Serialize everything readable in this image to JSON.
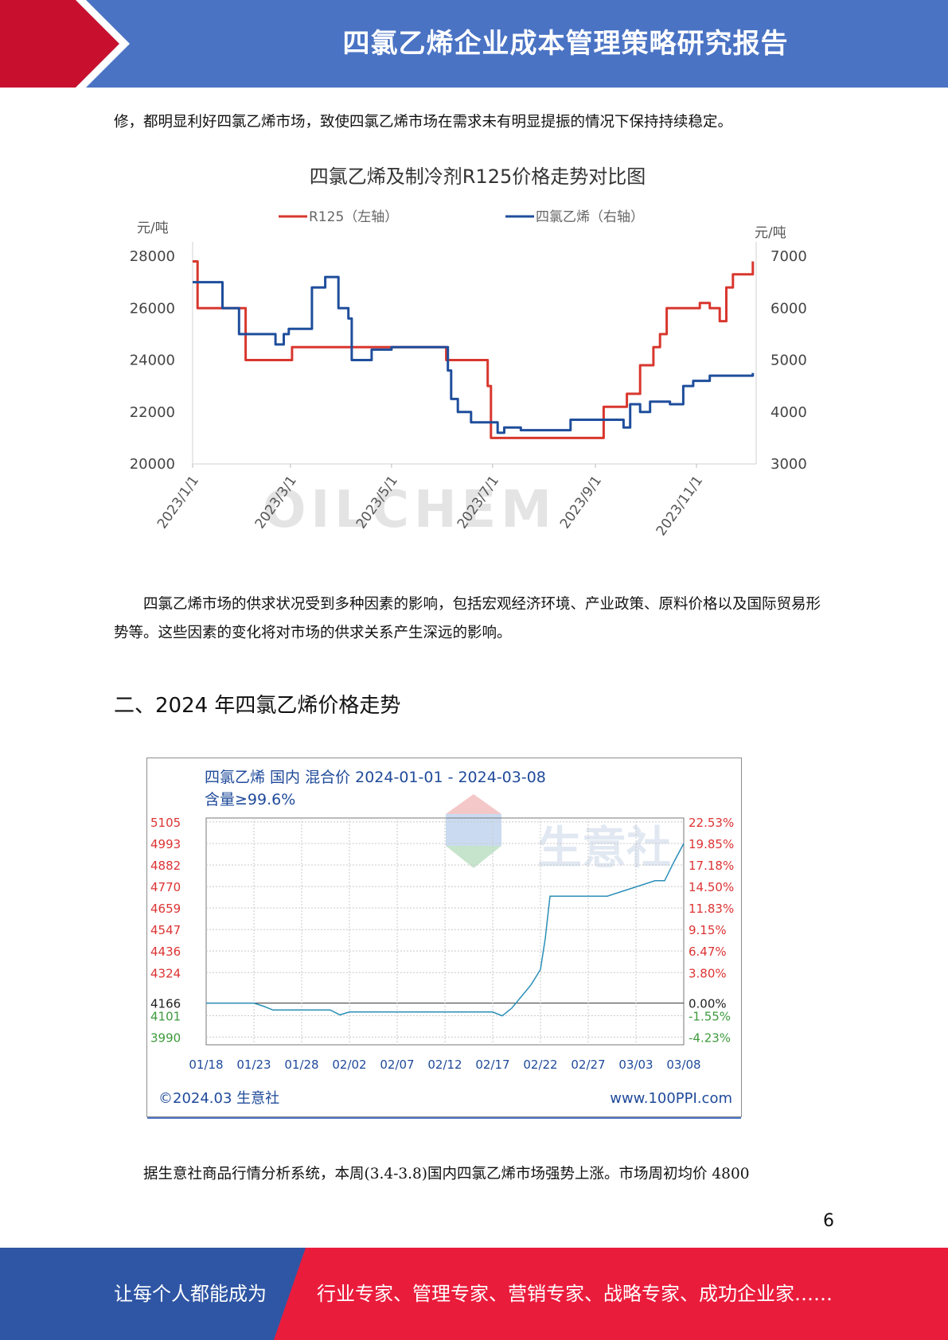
{
  "header": {
    "title": "四氯乙烯企业成本管理策略研究报告"
  },
  "paragraphs": {
    "p1": "修，都明显利好四氯乙烯市场，致使四氯乙烯市场在需求未有明显提振的情况下保持持续稳定。",
    "p2": "四氯乙烯市场的供求状况受到多种因素的影响，包括宏观经济环境、产业政策、原料价格以及国际贸易形势等。这些因素的变化将对市场的供求关系产生深远的影响。",
    "p3": "据生意社商品行情分析系统，本周(3.4-3.8)国内四氯乙烯市场强势上涨。市场周初均价 4800"
  },
  "section_heading": "二、2024 年四氯乙烯价格走势",
  "page_number": "6",
  "footer": {
    "left": "让每个人都能成为",
    "right": "行业专家、管理专家、营销专家、战略专家、成功企业家……"
  },
  "colors": {
    "header_blue": "#4a73c4",
    "accent_red": "#c8102e",
    "footer_blue": "#2f56a5",
    "footer_red": "#ea1c3c"
  },
  "chart_data": [
    {
      "type": "line",
      "title": "四氯乙烯及制冷剂R125价格走势对比图",
      "ylabel_left": "元/吨",
      "ylabel_right": "元/吨",
      "ylim_left": [
        20000,
        28000
      ],
      "ylim_right": [
        3000,
        7000
      ],
      "left_ticks": [
        "28000",
        "26000",
        "24000",
        "22000",
        "20000"
      ],
      "right_ticks": [
        "7000",
        "6000",
        "5000",
        "4000",
        "3000"
      ],
      "x_ticks": [
        "2023/1/1",
        "2023/3/1",
        "2023/5/1",
        "2023/7/1",
        "2023/9/1",
        "2023/11/1"
      ],
      "x_tick_days": [
        0,
        59,
        120,
        181,
        243,
        304
      ],
      "x_range_days": [
        0,
        340
      ],
      "watermark": "OILCHEM",
      "legend_position": "top",
      "series": [
        {
          "name": "R125（左轴）",
          "axis": "left",
          "color": "#d8372e",
          "x": [
            0,
            3,
            5,
            30,
            32,
            38,
            40,
            58,
            60,
            150,
            153,
            178,
            180,
            246,
            248,
            260,
            262,
            268,
            270,
            278,
            282,
            286,
            292,
            302,
            306,
            312,
            316,
            318,
            322,
            326,
            330,
            336,
            338
          ],
          "y": [
            27800,
            26000,
            26000,
            26000,
            24000,
            24000,
            24000,
            24000,
            24500,
            24500,
            24000,
            23000,
            21000,
            21000,
            22200,
            22200,
            22700,
            22700,
            23800,
            24500,
            25000,
            26000,
            26000,
            26000,
            26200,
            26000,
            26000,
            25500,
            26800,
            27300,
            27300,
            27300,
            27800
          ]
        },
        {
          "name": "四氯乙烯（右轴）",
          "axis": "left",
          "color": "#1f4e9c",
          "x": [
            0,
            12,
            18,
            22,
            28,
            48,
            50,
            55,
            58,
            70,
            72,
            80,
            82,
            88,
            91,
            94,
            96,
            108,
            110,
            120,
            126,
            132,
            140,
            144,
            148,
            152,
            154,
            156,
            160,
            168,
            176,
            178,
            180,
            184,
            188,
            198,
            202,
            208,
            220,
            224,
            228,
            232,
            238,
            242,
            244,
            250,
            256,
            260,
            264,
            270,
            276,
            288,
            290,
            296,
            302,
            312,
            316,
            318,
            320,
            330,
            336,
            338
          ],
          "y": [
            27000,
            27000,
            26000,
            26000,
            25000,
            25000,
            24600,
            25000,
            25200,
            25200,
            26800,
            27200,
            27200,
            26000,
            26000,
            25600,
            24000,
            24400,
            24400,
            24500,
            24500,
            24500,
            24500,
            24500,
            24500,
            24500,
            23600,
            22500,
            22000,
            21600,
            21600,
            21600,
            21600,
            21200,
            21400,
            21300,
            21300,
            21300,
            21300,
            21300,
            21700,
            21700,
            21700,
            21700,
            21700,
            21700,
            21700,
            21400,
            22300,
            22000,
            22400,
            22300,
            22300,
            23000,
            23200,
            23400,
            23400,
            23400,
            23400,
            23400,
            23400,
            23500
          ]
        }
      ]
    },
    {
      "type": "line",
      "title": "四氯乙烯 国内 混合价 2024-01-01 - 2024-03-08",
      "subtitle": "含量≥99.6%",
      "left_ticks": [
        "5105",
        "4993",
        "4882",
        "4770",
        "4659",
        "4547",
        "4436",
        "4324",
        "4166",
        "4101",
        "3990"
      ],
      "left_tick_values": [
        5105,
        4993,
        4882,
        4770,
        4659,
        4547,
        4436,
        4324,
        4166,
        4101,
        3990
      ],
      "right_ticks": [
        "22.53%",
        "19.85%",
        "17.18%",
        "14.50%",
        "11.83%",
        "9.15%",
        "6.47%",
        "3.80%",
        "0.00%",
        "-1.55%",
        "-4.23%"
      ],
      "x_ticks": [
        "01/18",
        "01/23",
        "01/28",
        "02/02",
        "02/07",
        "02/12",
        "02/17",
        "02/22",
        "02/27",
        "03/03",
        "03/08"
      ],
      "x_range_days": [
        0,
        50
      ],
      "ylim": [
        3950,
        5125
      ],
      "baseline": 4166,
      "watermark": "生意社",
      "footer_left": "©2024.03 生意社",
      "footer_right": "www.100PPI.com",
      "series": [
        {
          "name": "",
          "color": "#2a8fb8",
          "x": [
            0,
            5,
            6,
            7,
            13,
            14,
            15,
            30,
            31,
            32,
            33,
            34,
            34.5,
            35,
            35.5,
            36,
            37,
            42,
            47,
            48,
            49,
            50
          ],
          "y": [
            4166,
            4166,
            4150,
            4130,
            4130,
            4105,
            4120,
            4120,
            4100,
            4140,
            4200,
            4260,
            4300,
            4340,
            4500,
            4720,
            4720,
            4720,
            4800,
            4800,
            4900,
            4993
          ]
        }
      ]
    }
  ]
}
